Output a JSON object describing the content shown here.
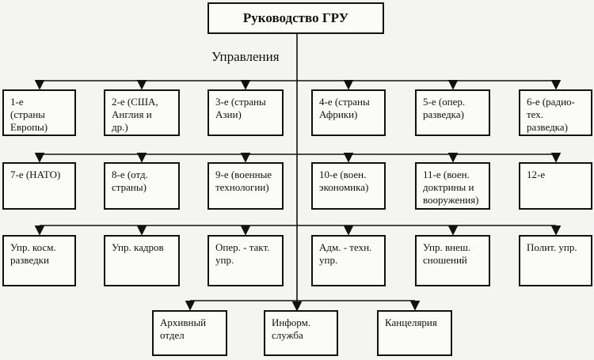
{
  "title": "Руководство ГРУ",
  "subtitle": "Управления",
  "rows": [
    [
      "1-е\n(страны\nЕвропы)",
      "2-е (США,\nАнглия и\nдр.)",
      "3-е (страны\nАзии)",
      "4-е (страны\nАфрики)",
      "5-е (опер.\nразведка)",
      "6-е (радио-\nтех.\nразведка)"
    ],
    [
      "7-е (НАТО)",
      "8-е (отд.\nстраны)",
      "9-е (военные\nтехнологии)",
      "10-е (воен.\nэкономика)",
      "11-е (воен.\nдоктрины и\nвооружения)",
      "12-е"
    ],
    [
      "Упр. косм.\nразведки",
      "Упр. кадров",
      "Опер. - такт.\nупр.",
      "Адм. - техн.\nупр.",
      "Упр. внеш.\nсношений",
      "Полит. упр."
    ],
    [
      "Архивный\nотдел",
      "Информ.\nслужба",
      "Канцелярия"
    ]
  ],
  "colors": {
    "line": "#111111",
    "background": "#f4f4f2"
  }
}
